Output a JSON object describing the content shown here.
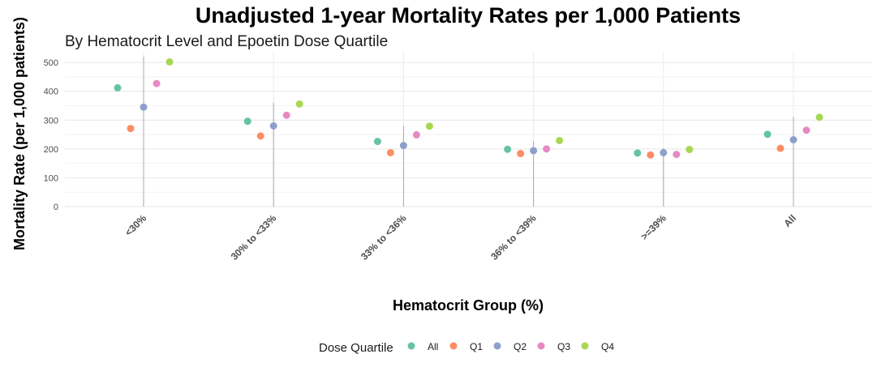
{
  "chart_data": {
    "type": "scatter",
    "title": "Unadjusted 1-year Mortality Rates per 1,000 Patients",
    "subtitle": "By Hematocrit Level and Epoetin Dose Quartile",
    "xlabel": "Hematocrit Group (%)",
    "ylabel": "Mortality Rate (per 1,000 patients)",
    "ylim": [
      0,
      500
    ],
    "yticks": [
      0,
      100,
      200,
      300,
      400,
      500
    ],
    "grid": true,
    "legend_position": "bottom",
    "legend_title": "Dose Quartile",
    "categories": [
      "<30%",
      "30% to <33%",
      "33% to <36%",
      "36% to <39%",
      ">=39%",
      "All"
    ],
    "reference_lines": [
      520,
      360,
      280,
      228,
      203,
      312
    ],
    "series": [
      {
        "name": "All",
        "color": "#66c2a5",
        "values": [
          412,
          296,
          226,
          199,
          186,
          251
        ]
      },
      {
        "name": "Q1",
        "color": "#fc8d62",
        "values": [
          271,
          245,
          187,
          184,
          179,
          202
        ]
      },
      {
        "name": "Q2",
        "color": "#8da0cb",
        "values": [
          345,
          280,
          212,
          194,
          187,
          232
        ]
      },
      {
        "name": "Q3",
        "color": "#e78ac3",
        "values": [
          427,
          317,
          249,
          200,
          181,
          265
        ]
      },
      {
        "name": "Q4",
        "color": "#a6d854",
        "values": [
          502,
          356,
          279,
          229,
          198,
          310
        ]
      }
    ]
  }
}
